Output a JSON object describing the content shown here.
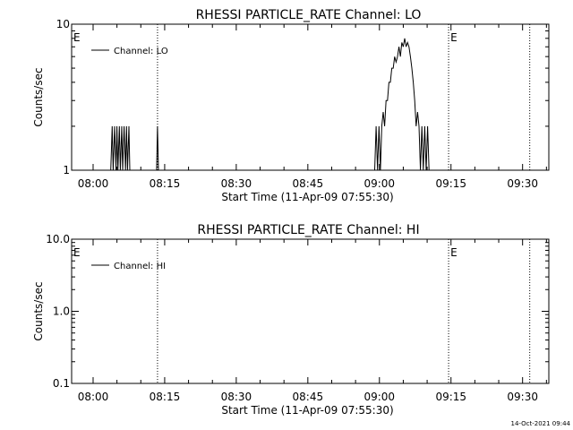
{
  "footer": {
    "timestamp": "14-Oct-2021 09:44"
  },
  "chart_data": [
    {
      "type": "line",
      "title": "RHESSI PARTICLE_RATE Channel: LO",
      "xlabel": "Start Time (11-Apr-09 07:55:30)",
      "ylabel": "Counts/sec",
      "yscale": "log",
      "ylim": [
        1,
        10
      ],
      "ytick_labels": [
        "1",
        "10"
      ],
      "xlim": [
        "07:55:30",
        "09:35:30"
      ],
      "xtick_labels": [
        "08:00",
        "08:15",
        "08:30",
        "08:45",
        "09:00",
        "09:15",
        "09:30"
      ],
      "grid": false,
      "legend": {
        "position": "top-left",
        "entries": [
          "Channel: LO"
        ]
      },
      "markers": [
        {
          "time": "08:13:30",
          "label": ""
        },
        {
          "time": "09:14:30",
          "label": "E"
        },
        {
          "time": "09:31:30",
          "label": ""
        }
      ],
      "edge_label": "E",
      "series": [
        {
          "name": "Channel: LO",
          "x": [
            "08:03:42",
            "08:04:00",
            "08:04:12",
            "08:04:30",
            "08:04:48",
            "08:05:00",
            "08:05:12",
            "08:05:30",
            "08:05:42",
            "08:06:00",
            "08:06:12",
            "08:06:30",
            "08:06:48",
            "08:07:00",
            "08:07:12",
            "08:07:30",
            "08:07:42",
            "08:08:00",
            "08:13:18",
            "08:13:30",
            "08:13:42",
            "08:59:00",
            "08:59:18",
            "08:59:36",
            "08:59:54",
            "09:00:12",
            "09:00:30",
            "09:00:48",
            "09:01:06",
            "09:01:24",
            "09:01:42",
            "09:02:00",
            "09:02:18",
            "09:02:36",
            "09:02:54",
            "09:03:12",
            "09:03:30",
            "09:03:48",
            "09:04:06",
            "09:04:24",
            "09:04:42",
            "09:05:00",
            "09:05:18",
            "09:05:36",
            "09:05:54",
            "09:06:12",
            "09:06:30",
            "09:06:48",
            "09:07:06",
            "09:07:24",
            "09:07:42",
            "09:08:00",
            "09:08:18",
            "09:08:36",
            "09:08:54",
            "09:09:12",
            "09:09:30",
            "09:09:48",
            "09:10:06",
            "09:10:24"
          ],
          "y": [
            1,
            2,
            1,
            2,
            1,
            2,
            1,
            2,
            1,
            2,
            1,
            2,
            1,
            2,
            1,
            2,
            1,
            1,
            1,
            2,
            1,
            1,
            2,
            1,
            2,
            1,
            2,
            2.5,
            2,
            3,
            3,
            4,
            4,
            5,
            5,
            6,
            5.5,
            6,
            7,
            6,
            7.5,
            7,
            8,
            7,
            7.5,
            7,
            6,
            5,
            4,
            3,
            2,
            2.5,
            2,
            1,
            2,
            1,
            2,
            1,
            2,
            1
          ]
        }
      ]
    },
    {
      "type": "line",
      "title": "RHESSI PARTICLE_RATE Channel: HI",
      "xlabel": "Start Time (11-Apr-09 07:55:30)",
      "ylabel": "Counts/sec",
      "yscale": "log",
      "ylim": [
        0.1,
        10
      ],
      "ytick_labels": [
        "0.1",
        "1.0",
        "10.0"
      ],
      "xlim": [
        "07:55:30",
        "09:35:30"
      ],
      "xtick_labels": [
        "08:00",
        "08:15",
        "08:30",
        "08:45",
        "09:00",
        "09:15",
        "09:30"
      ],
      "grid": false,
      "legend": {
        "position": "top-left",
        "entries": [
          "Channel: HI"
        ]
      },
      "markers": [
        {
          "time": "08:13:30",
          "label": ""
        },
        {
          "time": "09:14:30",
          "label": "E"
        },
        {
          "time": "09:31:30",
          "label": ""
        }
      ],
      "edge_label": "E",
      "series": [
        {
          "name": "Channel: HI",
          "x": [],
          "y": []
        }
      ]
    }
  ]
}
